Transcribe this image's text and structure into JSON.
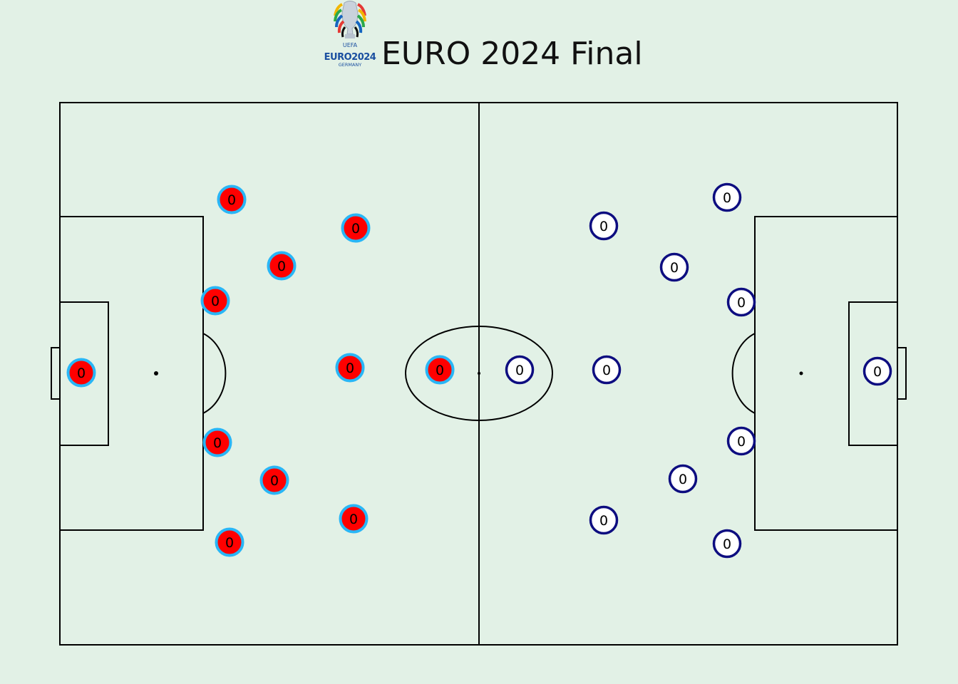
{
  "header": {
    "title": "EURO 2024 Final",
    "logo": {
      "uefa_text": "UEFA",
      "euro_text": "EURO2024",
      "country_text": "GERMANY"
    }
  },
  "colors": {
    "background": "#e2f1e6",
    "pitch_lines": "#000000",
    "team_a_fill": "#ff0000",
    "team_a_ring": "#29b6f6",
    "team_b_fill": "#ffffff",
    "team_b_ring": "#0d0d80"
  },
  "team_a": {
    "players": [
      {
        "number": "0"
      },
      {
        "number": "0"
      },
      {
        "number": "0"
      },
      {
        "number": "0"
      },
      {
        "number": "0"
      },
      {
        "number": "0"
      },
      {
        "number": "0"
      },
      {
        "number": "0"
      },
      {
        "number": "0"
      },
      {
        "number": "0"
      },
      {
        "number": "0"
      }
    ]
  },
  "team_b": {
    "players": [
      {
        "number": "0"
      },
      {
        "number": "0"
      },
      {
        "number": "0"
      },
      {
        "number": "0"
      },
      {
        "number": "0"
      },
      {
        "number": "0"
      },
      {
        "number": "0"
      },
      {
        "number": "0"
      },
      {
        "number": "0"
      },
      {
        "number": "0"
      },
      {
        "number": "0"
      }
    ]
  }
}
